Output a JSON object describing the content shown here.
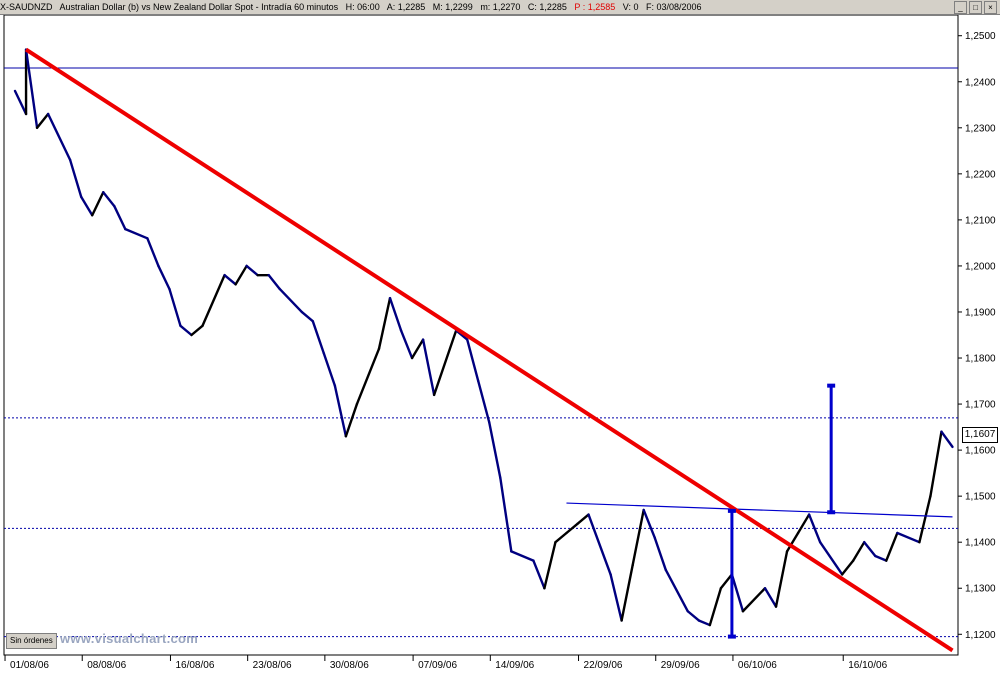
{
  "header": {
    "symbol": "X-SAUDNZD",
    "name": "Australian Dollar (b) vs New Zealand Dollar Spot - Intradía 60 minutos",
    "hour": "H: 06:00",
    "open": "A: 1,2285",
    "high": "M: 1,2299",
    "low": "m: 1,2270",
    "close": "C: 1,2285",
    "prev": "P : 1,2585",
    "volume": "V: 0",
    "date": "F: 03/08/2006"
  },
  "window_buttons": {
    "minimize": "_",
    "maximize": "□",
    "close": "×"
  },
  "orders_button": "Sin órdenes",
  "watermark": "www.visualchart.com",
  "last_price_label": "1,1607",
  "colors": {
    "price_up": "#000000",
    "price_down": "#000080",
    "trendline": "#ee0000",
    "support": "#0000cc",
    "measure": "#0000cc"
  },
  "chart_data": {
    "type": "line",
    "title": "",
    "xlabel": "",
    "ylabel": "",
    "ylim": [
      1.1155,
      1.2545
    ],
    "x_tick_labels": [
      "01/08/06",
      "08/08/06",
      "16/08/06",
      "23/08/06",
      "30/08/06",
      "07/09/06",
      "14/09/06",
      "22/09/06",
      "29/09/06",
      "06/10/06",
      "16/10/06"
    ],
    "y_ticks": [
      1.12,
      1.13,
      1.14,
      1.15,
      1.16,
      1.17,
      1.18,
      1.19,
      1.2,
      1.21,
      1.22,
      1.23,
      1.24,
      1.25
    ],
    "y_tick_labels": [
      "1,1200",
      "1,1300",
      "1,1400",
      "1,1500",
      "1,1600",
      "1,1700",
      "1,1800",
      "1,1900",
      "1,2000",
      "1,2100",
      "1,2200",
      "1,2300",
      "1,2400",
      "1,2500"
    ],
    "series": [
      {
        "x": [
          "2006-08-01",
          "2006-08-02",
          "2006-08-02",
          "2006-08-03",
          "2006-08-04",
          "2006-08-06",
          "2006-08-07",
          "2006-08-08",
          "2006-08-09",
          "2006-08-10",
          "2006-08-11",
          "2006-08-13",
          "2006-08-14",
          "2006-08-15",
          "2006-08-16",
          "2006-08-17",
          "2006-08-18",
          "2006-08-20",
          "2006-08-21",
          "2006-08-22",
          "2006-08-23",
          "2006-08-24",
          "2006-08-25",
          "2006-08-27",
          "2006-08-28",
          "2006-08-29",
          "2006-08-30",
          "2006-08-31",
          "2006-09-01",
          "2006-09-03",
          "2006-09-04",
          "2006-09-05",
          "2006-09-06",
          "2006-09-07",
          "2006-09-08",
          "2006-09-10",
          "2006-09-11",
          "2006-09-12",
          "2006-09-13",
          "2006-09-14",
          "2006-09-15",
          "2006-09-17",
          "2006-09-18",
          "2006-09-19",
          "2006-09-20",
          "2006-09-21",
          "2006-09-22",
          "2006-09-24",
          "2006-09-25",
          "2006-09-26",
          "2006-09-27",
          "2006-09-28",
          "2006-09-29",
          "2006-10-01",
          "2006-10-02",
          "2006-10-03",
          "2006-10-04",
          "2006-10-05",
          "2006-10-06",
          "2006-10-08",
          "2006-10-09",
          "2006-10-10",
          "2006-10-11",
          "2006-10-12",
          "2006-10-13",
          "2006-10-15",
          "2006-10-16",
          "2006-10-17",
          "2006-10-18",
          "2006-10-19",
          "2006-10-20",
          "2006-10-22",
          "2006-10-23",
          "2006-10-24",
          "2006-10-25"
        ],
        "values": [
          1.238,
          1.233,
          1.247,
          1.23,
          1.233,
          1.223,
          1.215,
          1.211,
          1.216,
          1.213,
          1.208,
          1.206,
          1.2,
          1.195,
          1.187,
          1.185,
          1.187,
          1.198,
          1.196,
          1.2,
          1.198,
          1.198,
          1.195,
          1.19,
          1.188,
          1.181,
          1.174,
          1.163,
          1.17,
          1.182,
          1.193,
          1.186,
          1.18,
          1.184,
          1.172,
          1.186,
          1.184,
          1.175,
          1.166,
          1.154,
          1.138,
          1.136,
          1.13,
          1.14,
          1.142,
          1.144,
          1.146,
          1.133,
          1.123,
          1.135,
          1.147,
          1.141,
          1.134,
          1.125,
          1.123,
          1.122,
          1.13,
          1.133,
          1.125,
          1.13,
          1.126,
          1.138,
          1.142,
          1.146,
          1.14,
          1.133,
          1.136,
          1.14,
          1.137,
          1.136,
          1.142,
          1.14,
          1.15,
          1.164,
          1.1607
        ]
      }
    ],
    "annotations": [
      {
        "kind": "trendline",
        "color": "red",
        "x": [
          "2006-08-02",
          "2006-10-25"
        ],
        "y": [
          1.247,
          1.1165
        ]
      },
      {
        "kind": "horizontal",
        "y": 1.243
      },
      {
        "kind": "horizontal",
        "y": 1.167
      },
      {
        "kind": "horizontal",
        "y": 1.143
      },
      {
        "kind": "horizontal",
        "y": 1.1195
      },
      {
        "kind": "neckline",
        "x": [
          "2006-09-20",
          "2006-10-25"
        ],
        "y": [
          1.1485,
          1.1455
        ]
      },
      {
        "kind": "measure",
        "x": "2006-10-05",
        "y": [
          1.1195,
          1.1468
        ]
      },
      {
        "kind": "measure",
        "x": "2006-10-14",
        "y": [
          1.1465,
          1.174
        ]
      }
    ]
  }
}
